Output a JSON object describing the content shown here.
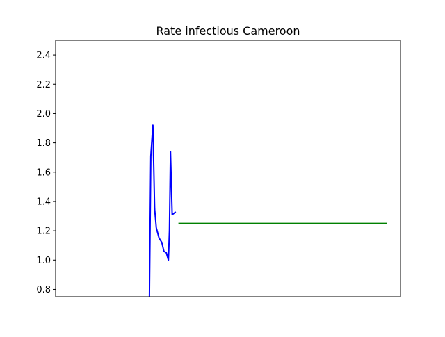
{
  "chart_data": {
    "type": "line",
    "title": "Rate infectious Cameroon",
    "xlabel": "",
    "ylabel": "",
    "ylim": [
      0.75,
      2.5
    ],
    "xlim": [
      0,
      100
    ],
    "y_ticks": [
      "0.8",
      "1.0",
      "1.2",
      "1.4",
      "1.6",
      "1.8",
      "2.0",
      "2.2",
      "2.4"
    ],
    "grid": false,
    "series": [
      {
        "color": "#0000ff",
        "x": [
          27.2,
          27.6,
          28.2,
          28.7,
          29.2,
          30.0,
          30.8,
          31.4,
          32.1,
          32.7,
          33.0,
          33.3,
          33.8,
          34.4,
          34.8
        ],
        "y": [
          0.75,
          1.71,
          1.92,
          1.35,
          1.22,
          1.15,
          1.12,
          1.06,
          1.05,
          1.0,
          1.2,
          1.74,
          1.31,
          1.32,
          1.33
        ]
      },
      {
        "color": "#008000",
        "x": [
          35.6,
          96.0
        ],
        "y": [
          1.25,
          1.25
        ]
      }
    ]
  }
}
